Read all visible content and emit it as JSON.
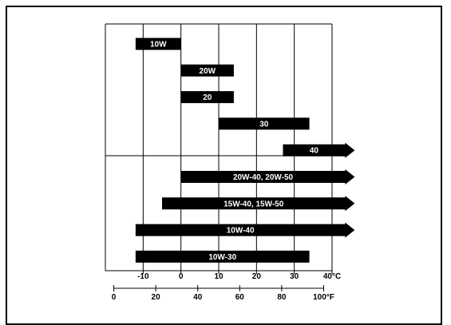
{
  "chart_data": {
    "type": "bar",
    "orientation": "horizontal-range",
    "title": "",
    "xlabel": "",
    "ylabel": "",
    "grid": true,
    "xlim_c": [
      -20,
      40
    ],
    "x_c_ticks": [
      "-10",
      "0",
      "10",
      "20",
      "30",
      "40°C"
    ],
    "x_f_ticks": [
      "0",
      "20",
      "40",
      "60",
      "80",
      "100°F"
    ],
    "bars": [
      {
        "label": "10W",
        "start_c": -12,
        "end_c": 0,
        "arrow": false
      },
      {
        "label": "20W",
        "start_c": 0,
        "end_c": 14,
        "arrow": false
      },
      {
        "label": "20",
        "start_c": 0,
        "end_c": 14,
        "arrow": false
      },
      {
        "label": "30",
        "start_c": 10,
        "end_c": 34,
        "arrow": false
      },
      {
        "label": "40",
        "start_c": 27,
        "end_c": 46,
        "arrow": true
      },
      {
        "label": "20W-40, 20W-50",
        "start_c": 0,
        "end_c": 46,
        "arrow": true
      },
      {
        "label": "15W-40, 15W-50",
        "start_c": -5,
        "end_c": 46,
        "arrow": true
      },
      {
        "label": "10W-40",
        "start_c": -12,
        "end_c": 46,
        "arrow": true
      },
      {
        "label": "10W-30",
        "start_c": -12,
        "end_c": 34,
        "arrow": false
      }
    ],
    "colors": {
      "bar": "#000000",
      "text": "#ffffff",
      "line": "#000000"
    }
  }
}
